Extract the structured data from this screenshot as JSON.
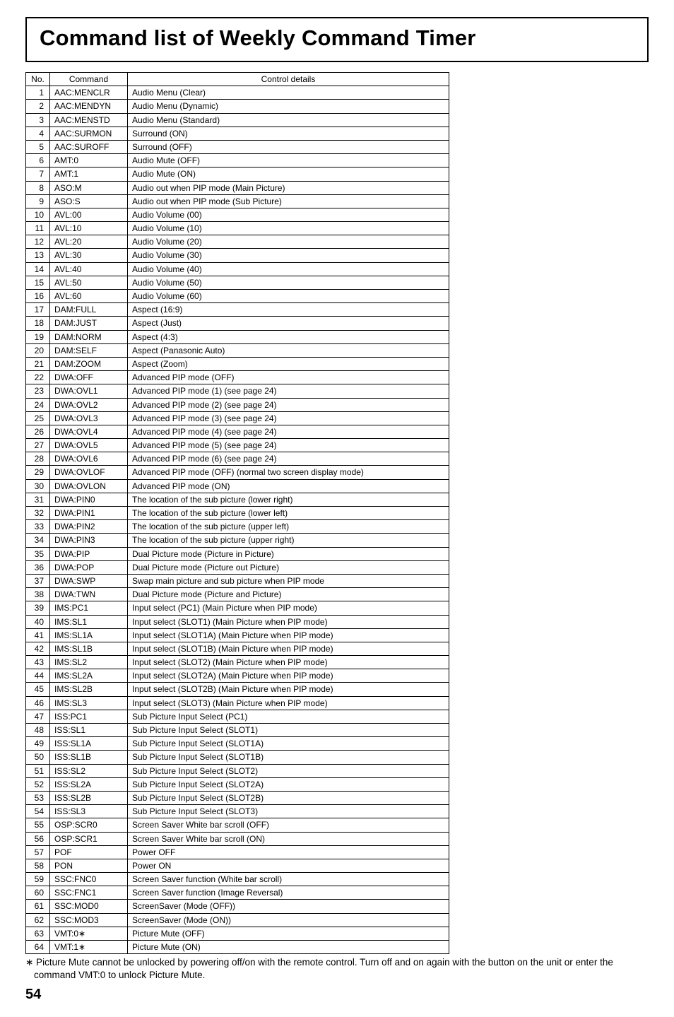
{
  "title": "Command list of Weekly Command Timer",
  "columns": {
    "no": "No.",
    "command": "Command",
    "details": "Control details"
  },
  "rows": [
    {
      "n": "1",
      "c": "AAC:MENCLR",
      "d": "Audio Menu (Clear)"
    },
    {
      "n": "2",
      "c": "AAC:MENDYN",
      "d": "Audio Menu (Dynamic)"
    },
    {
      "n": "3",
      "c": "AAC:MENSTD",
      "d": "Audio Menu (Standard)"
    },
    {
      "n": "4",
      "c": "AAC:SURMON",
      "d": "Surround (ON)"
    },
    {
      "n": "5",
      "c": "AAC:SUROFF",
      "d": "Surround (OFF)"
    },
    {
      "n": "6",
      "c": "AMT:0",
      "d": "Audio Mute (OFF)"
    },
    {
      "n": "7",
      "c": "AMT:1",
      "d": "Audio Mute (ON)"
    },
    {
      "n": "8",
      "c": "ASO:M",
      "d": "Audio out when PIP mode (Main Picture)"
    },
    {
      "n": "9",
      "c": "ASO:S",
      "d": "Audio out when PIP mode (Sub Picture)"
    },
    {
      "n": "10",
      "c": "AVL:00",
      "d": "Audio Volume (00)"
    },
    {
      "n": "11",
      "c": "AVL:10",
      "d": "Audio Volume (10)"
    },
    {
      "n": "12",
      "c": "AVL:20",
      "d": "Audio Volume (20)"
    },
    {
      "n": "13",
      "c": "AVL:30",
      "d": "Audio Volume (30)"
    },
    {
      "n": "14",
      "c": "AVL:40",
      "d": "Audio Volume (40)"
    },
    {
      "n": "15",
      "c": "AVL:50",
      "d": "Audio Volume (50)"
    },
    {
      "n": "16",
      "c": "AVL:60",
      "d": "Audio Volume (60)"
    },
    {
      "n": "17",
      "c": "DAM:FULL",
      "d": "Aspect (16:9)"
    },
    {
      "n": "18",
      "c": "DAM:JUST",
      "d": "Aspect (Just)"
    },
    {
      "n": "19",
      "c": "DAM:NORM",
      "d": "Aspect (4:3)"
    },
    {
      "n": "20",
      "c": "DAM:SELF",
      "d": "Aspect (Panasonic Auto)"
    },
    {
      "n": "21",
      "c": "DAM:ZOOM",
      "d": "Aspect (Zoom)"
    },
    {
      "n": "22",
      "c": "DWA:OFF",
      "d": "Advanced PIP mode (OFF)"
    },
    {
      "n": "23",
      "c": "DWA:OVL1",
      "d": "Advanced PIP mode (1) (see page 24)"
    },
    {
      "n": "24",
      "c": "DWA:OVL2",
      "d": "Advanced PIP mode (2) (see page 24)"
    },
    {
      "n": "25",
      "c": "DWA:OVL3",
      "d": "Advanced PIP mode (3) (see page 24)"
    },
    {
      "n": "26",
      "c": "DWA:OVL4",
      "d": "Advanced PIP mode (4) (see page 24)"
    },
    {
      "n": "27",
      "c": "DWA:OVL5",
      "d": "Advanced PIP mode (5) (see page 24)"
    },
    {
      "n": "28",
      "c": "DWA:OVL6",
      "d": "Advanced PIP mode (6) (see page 24)"
    },
    {
      "n": "29",
      "c": "DWA:OVLOF",
      "d": "Advanced PIP mode (OFF) (normal two screen display mode)"
    },
    {
      "n": "30",
      "c": "DWA:OVLON",
      "d": "Advanced PIP mode (ON)"
    },
    {
      "n": "31",
      "c": "DWA:PIN0",
      "d": "The location of the sub picture (lower right)"
    },
    {
      "n": "32",
      "c": "DWA:PIN1",
      "d": "The location of the sub picture (lower left)"
    },
    {
      "n": "33",
      "c": "DWA:PIN2",
      "d": "The location of the sub picture (upper left)"
    },
    {
      "n": "34",
      "c": "DWA:PIN3",
      "d": "The location of the sub picture (upper right)"
    },
    {
      "n": "35",
      "c": "DWA:PIP",
      "d": "Dual Picture mode (Picture in Picture)"
    },
    {
      "n": "36",
      "c": "DWA:POP",
      "d": "Dual Picture mode (Picture out Picture)"
    },
    {
      "n": "37",
      "c": "DWA:SWP",
      "d": "Swap main picture and sub picture when PIP mode"
    },
    {
      "n": "38",
      "c": "DWA:TWN",
      "d": "Dual Picture mode (Picture and Picture)"
    },
    {
      "n": "39",
      "c": "IMS:PC1",
      "d": "Input select (PC1) (Main Picture when PIP mode)"
    },
    {
      "n": "40",
      "c": "IMS:SL1",
      "d": "Input select (SLOT1) (Main Picture when PIP mode)"
    },
    {
      "n": "41",
      "c": "IMS:SL1A",
      "d": "Input select (SLOT1A) (Main Picture when PIP mode)"
    },
    {
      "n": "42",
      "c": "IMS:SL1B",
      "d": "Input select (SLOT1B) (Main Picture when PIP mode)"
    },
    {
      "n": "43",
      "c": "IMS:SL2",
      "d": "Input select (SLOT2) (Main Picture when PIP mode)"
    },
    {
      "n": "44",
      "c": "IMS:SL2A",
      "d": "Input select (SLOT2A) (Main Picture when PIP mode)"
    },
    {
      "n": "45",
      "c": "IMS:SL2B",
      "d": "Input select (SLOT2B) (Main Picture when PIP mode)"
    },
    {
      "n": "46",
      "c": "IMS:SL3",
      "d": "Input select (SLOT3) (Main Picture when PIP mode)"
    },
    {
      "n": "47",
      "c": "ISS:PC1",
      "d": "Sub Picture Input Select (PC1)"
    },
    {
      "n": "48",
      "c": "ISS:SL1",
      "d": "Sub Picture Input Select (SLOT1)"
    },
    {
      "n": "49",
      "c": "ISS:SL1A",
      "d": "Sub Picture Input Select (SLOT1A)"
    },
    {
      "n": "50",
      "c": "ISS:SL1B",
      "d": "Sub Picture Input Select (SLOT1B)"
    },
    {
      "n": "51",
      "c": "ISS:SL2",
      "d": "Sub Picture Input Select (SLOT2)"
    },
    {
      "n": "52",
      "c": "ISS:SL2A",
      "d": "Sub Picture Input Select (SLOT2A)"
    },
    {
      "n": "53",
      "c": "ISS:SL2B",
      "d": "Sub Picture Input Select (SLOT2B)"
    },
    {
      "n": "54",
      "c": "ISS:SL3",
      "d": "Sub Picture Input Select (SLOT3)"
    },
    {
      "n": "55",
      "c": "OSP:SCR0",
      "d": "Screen Saver White bar scroll (OFF)"
    },
    {
      "n": "56",
      "c": "OSP:SCR1",
      "d": "Screen Saver White bar scroll (ON)"
    },
    {
      "n": "57",
      "c": "POF",
      "d": "Power OFF"
    },
    {
      "n": "58",
      "c": "PON",
      "d": "Power ON"
    },
    {
      "n": "59",
      "c": "SSC:FNC0",
      "d": "Screen Saver function (White bar scroll)"
    },
    {
      "n": "60",
      "c": "SSC:FNC1",
      "d": "Screen Saver function (Image Reversal)"
    },
    {
      "n": "61",
      "c": "SSC:MOD0",
      "d": "ScreenSaver (Mode (OFF))"
    },
    {
      "n": "62",
      "c": "SSC:MOD3",
      "d": "ScreenSaver (Mode (ON))"
    },
    {
      "n": "63",
      "c": "VMT:0∗",
      "d": "Picture Mute (OFF)"
    },
    {
      "n": "64",
      "c": "VMT:1∗",
      "d": "Picture Mute (ON)"
    }
  ],
  "footnote": "∗ Picture Mute cannot be unlocked by powering off/on with the remote control. Turn off and on again with the button on the unit or enter the command VMT:0 to unlock Picture Mute.",
  "page_number": "54"
}
